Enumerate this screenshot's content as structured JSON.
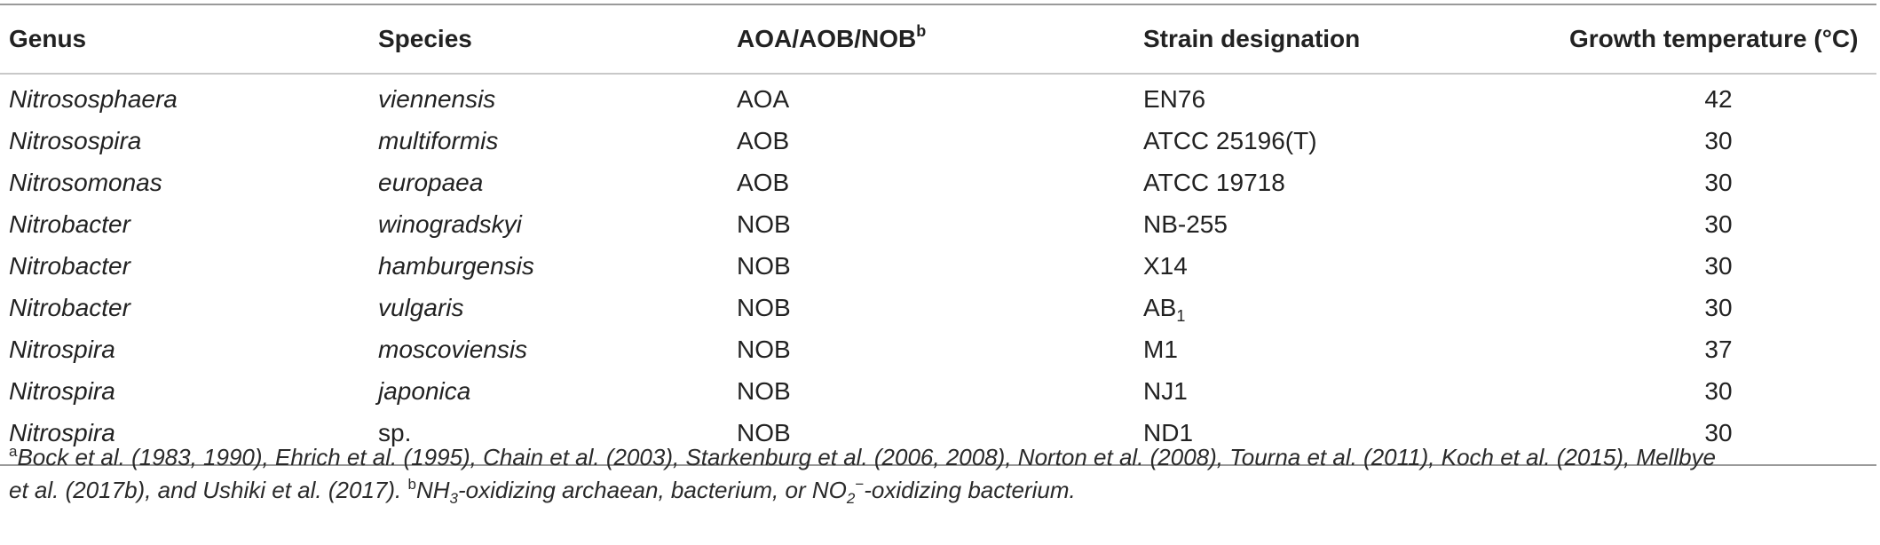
{
  "table": {
    "headers": {
      "genus": "Genus",
      "species": "Species",
      "type": "AOA/AOB/NOB",
      "type_sup": "b",
      "strain": "Strain designation",
      "temp": "Growth temperature (°C)"
    },
    "rows": [
      {
        "genus": "Nitrososphaera",
        "species": "viennensis",
        "species_italic": true,
        "type": "AOA",
        "strain": "EN76",
        "strain_sub": "",
        "temp": "42"
      },
      {
        "genus": "Nitrosospira",
        "species": "multiformis",
        "species_italic": true,
        "type": "AOB",
        "strain": "ATCC 25196(T)",
        "strain_sub": "",
        "temp": "30"
      },
      {
        "genus": "Nitrosomonas",
        "species": "europaea",
        "species_italic": true,
        "type": "AOB",
        "strain": "ATCC 19718",
        "strain_sub": "",
        "temp": "30"
      },
      {
        "genus": "Nitrobacter",
        "species": "winogradskyi",
        "species_italic": true,
        "type": "NOB",
        "strain": "NB-255",
        "strain_sub": "",
        "temp": "30"
      },
      {
        "genus": "Nitrobacter",
        "species": "hamburgensis",
        "species_italic": true,
        "type": "NOB",
        "strain": "X14",
        "strain_sub": "",
        "temp": "30"
      },
      {
        "genus": "Nitrobacter",
        "species": "vulgaris",
        "species_italic": true,
        "type": "NOB",
        "strain": "AB",
        "strain_sub": "1",
        "temp": "30"
      },
      {
        "genus": "Nitrospira",
        "species": "moscoviensis",
        "species_italic": true,
        "type": "NOB",
        "strain": "M1",
        "strain_sub": "",
        "temp": "37"
      },
      {
        "genus": "Nitrospira",
        "species": "japonica",
        "species_italic": true,
        "type": "NOB",
        "strain": "NJ1",
        "strain_sub": "",
        "temp": "30"
      },
      {
        "genus": "Nitrospira",
        "species": "sp.",
        "species_italic": false,
        "type": "NOB",
        "strain": "ND1",
        "strain_sub": "",
        "temp": "30"
      }
    ]
  },
  "footnote": {
    "a_mark": "a",
    "a_text_line1": "Bock et al. (1983, 1990), Ehrich et al. (1995), Chain et al. (2003), Starkenburg et al. (2006, 2008), Norton et al. (2008), Tourna et al. (2011), Koch et al. (2015), Mellbye",
    "a_text_line2": "et al. (2017b), and Ushiki et al. (2017).",
    "b_mark": "b",
    "b_part1": "NH",
    "b_sub1": "3",
    "b_part2": "-oxidizing archaean, bacterium, or NO",
    "b_sub2": "2",
    "b_sup2": "−",
    "b_part3": "-oxidizing bacterium."
  }
}
